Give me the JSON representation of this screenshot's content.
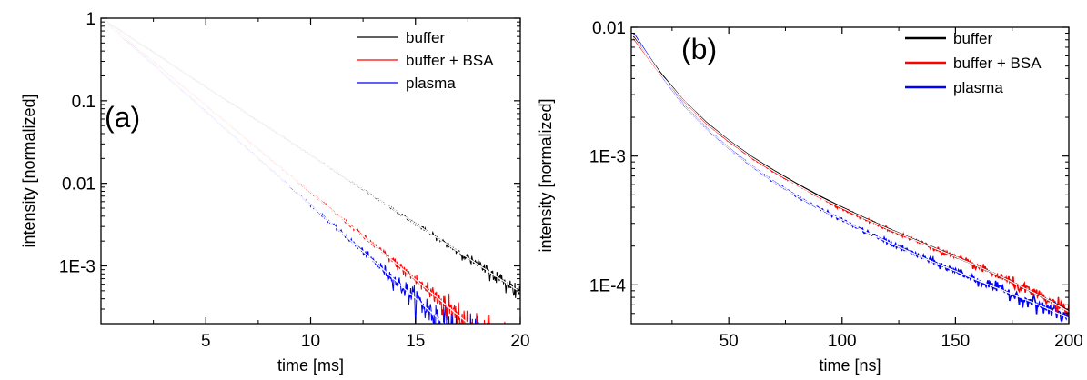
{
  "chart_data": [
    {
      "type": "line",
      "panel_label": "(a)",
      "xlabel": "time [ms]",
      "ylabel": "intensity [normalized]",
      "xlim": [
        0,
        20
      ],
      "ylim": [
        0.0002,
        1
      ],
      "yscale": "log",
      "xticks": [
        5,
        10,
        15,
        20
      ],
      "xtick_labels": [
        "5",
        "10",
        "15",
        "20"
      ],
      "yticks": [
        1,
        0.1,
        0.01,
        0.001
      ],
      "ytick_labels": [
        "1",
        "0.1",
        "0.01",
        "1E-3"
      ],
      "legend_position": "top-right",
      "series": [
        {
          "name": "buffer",
          "color": "#000000",
          "x": [
            0,
            20
          ],
          "y": [
            1,
            0.00048
          ],
          "noisy": true
        },
        {
          "name": "buffer + BSA",
          "color": "#ff0000",
          "x": [
            0,
            20
          ],
          "y": [
            1,
            6e-05
          ],
          "noisy": true
        },
        {
          "name": "plasma",
          "color": "#0000ff",
          "x": [
            0,
            20
          ],
          "y": [
            1,
            3e-05
          ],
          "noisy": true
        }
      ],
      "fits": [
        {
          "color": "#ffffff",
          "x": [
            0,
            20
          ],
          "y": [
            1,
            0.00048
          ]
        },
        {
          "color": "#ffffff",
          "x": [
            0,
            20
          ],
          "y": [
            1,
            6e-05
          ]
        },
        {
          "color": "#ffffff",
          "x": [
            0,
            20
          ],
          "y": [
            1,
            3e-05
          ]
        }
      ]
    },
    {
      "type": "line",
      "panel_label": "(b)",
      "xlabel": "time [ns]",
      "ylabel": "intensity [normalized]",
      "xlim": [
        7,
        200
      ],
      "ylim": [
        5e-05,
        0.01
      ],
      "yscale": "log",
      "xticks": [
        50,
        100,
        150,
        200
      ],
      "xtick_labels": [
        "50",
        "100",
        "150",
        "200"
      ],
      "yticks": [
        0.01,
        0.001,
        0.0001
      ],
      "ytick_labels": [
        "0.01",
        "1E-3",
        "1E-4"
      ],
      "legend_position": "top-right",
      "series": [
        {
          "name": "buffer",
          "color": "#000000",
          "x": [
            8,
            20,
            30,
            40,
            50,
            60,
            70,
            80,
            90,
            100,
            110,
            120,
            130,
            140,
            150,
            160,
            170,
            180,
            190,
            200
          ],
          "y": [
            0.0085,
            0.0044,
            0.0027,
            0.00183,
            0.00132,
            0.00099,
            0.00077,
            0.00061,
            0.00049,
            0.0004,
            0.00033,
            0.000275,
            0.000232,
            0.000196,
            0.000165,
            0.000139,
            0.000116,
            9.5e-05,
            7.8e-05,
            6.3e-05
          ],
          "noisy": false
        },
        {
          "name": "buffer + BSA",
          "color": "#ff0000",
          "x": [
            8,
            20,
            30,
            40,
            50,
            60,
            70,
            80,
            90,
            100,
            110,
            120,
            130,
            140,
            150,
            160,
            170,
            180,
            190,
            200
          ],
          "y": [
            0.0082,
            0.0043,
            0.0027,
            0.0018,
            0.0013,
            0.00097,
            0.00075,
            0.0006,
            0.00048,
            0.00039,
            0.000325,
            0.000272,
            0.00023,
            0.000195,
            0.000164,
            0.000138,
            0.000115,
            9.4e-05,
            7.7e-05,
            6.2e-05
          ],
          "noisy": true
        },
        {
          "name": "plasma",
          "color": "#0000ff",
          "x": [
            8,
            20,
            30,
            40,
            50,
            60,
            70,
            80,
            90,
            100,
            110,
            120,
            130,
            140,
            150,
            160,
            170,
            180,
            190,
            200
          ],
          "y": [
            0.009,
            0.0043,
            0.0025,
            0.00165,
            0.00115,
            0.00084,
            0.00063,
            0.00049,
            0.00039,
            0.00032,
            0.00026,
            0.000216,
            0.00018,
            0.000151,
            0.000128,
            0.000108,
            9.2e-05,
            7.8e-05,
            6.6e-05,
            5.5e-05
          ],
          "noisy": true
        }
      ],
      "fits": [
        {
          "color": "#ffffff",
          "x": [
            8,
            20,
            30,
            40,
            50,
            60,
            70,
            80,
            90,
            100,
            110,
            120,
            130,
            140,
            150,
            160,
            170,
            180,
            190,
            200
          ],
          "y": [
            0.0083,
            0.0043,
            0.0027,
            0.00181,
            0.00131,
            0.00098,
            0.00076,
            0.0006,
            0.00048,
            0.000395,
            0.000327,
            0.000273,
            0.000231,
            0.000195,
            0.000165,
            0.000139,
            0.000116,
            9.5e-05,
            7.8e-05,
            6.2e-05
          ]
        },
        {
          "color": "#ffffff",
          "x": [
            8,
            20,
            30,
            40,
            50,
            60,
            70,
            80,
            90,
            100,
            110,
            120,
            130,
            140,
            150,
            160,
            170,
            180,
            190,
            200
          ],
          "y": [
            0.0088,
            0.0043,
            0.0025,
            0.00165,
            0.00115,
            0.00084,
            0.00063,
            0.00049,
            0.00039,
            0.00032,
            0.00026,
            0.000216,
            0.00018,
            0.000151,
            0.000128,
            0.000108,
            9.2e-05,
            7.8e-05,
            6.6e-05,
            5.5e-05
          ]
        }
      ]
    }
  ]
}
